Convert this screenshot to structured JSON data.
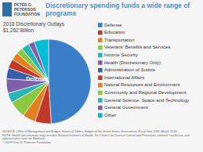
{
  "chart_data": {
    "type": "pie",
    "title": "Discretionary spending funds a wide range of programs",
    "subtitle": "2018 Discretionary Outlays\n$1,262 Billion",
    "annotations": [
      "Defense"
    ],
    "categories": [
      "Defense",
      "Education",
      "Transportation",
      "Veterans' Benefits and Services",
      "Income Security",
      "Health (Discretionary Only)",
      "Administration of Justice",
      "International Affairs",
      "Natural Resources and Environment",
      "Community and Regional Development",
      "General Science, Space and Technology",
      "General Government",
      "Other"
    ],
    "values": [
      49.0,
      6.2,
      5.0,
      6.5,
      3.8,
      5.5,
      4.2,
      3.5,
      3.0,
      2.5,
      3.0,
      2.3,
      5.5
    ],
    "colors": [
      "#3b7ec8",
      "#c0392b",
      "#e08020",
      "#8dc641",
      "#29b5b5",
      "#7f5fa8",
      "#3a5fa8",
      "#c0392b",
      "#e08020",
      "#8dc641",
      "#29b5b5",
      "#7f5fa8",
      "#00bcd4"
    ],
    "legend": "right",
    "source": [
      "SOURCE: Office of Management and Budget, Historical Tables, Budget of the United States Government, Fiscal Year 2020, March 2019.",
      "NOTE: Health (discretionary only) includes National Institutes of Health, the Centers for Disease Control and Prevention, veterans' healthcare, and",
      "administrative costs for Medicaid.",
      "© 2019 Peter G. Peterson Foundation"
    ],
    "logo": "PETER G.\nPETERSON\nFOUNDATION"
  }
}
